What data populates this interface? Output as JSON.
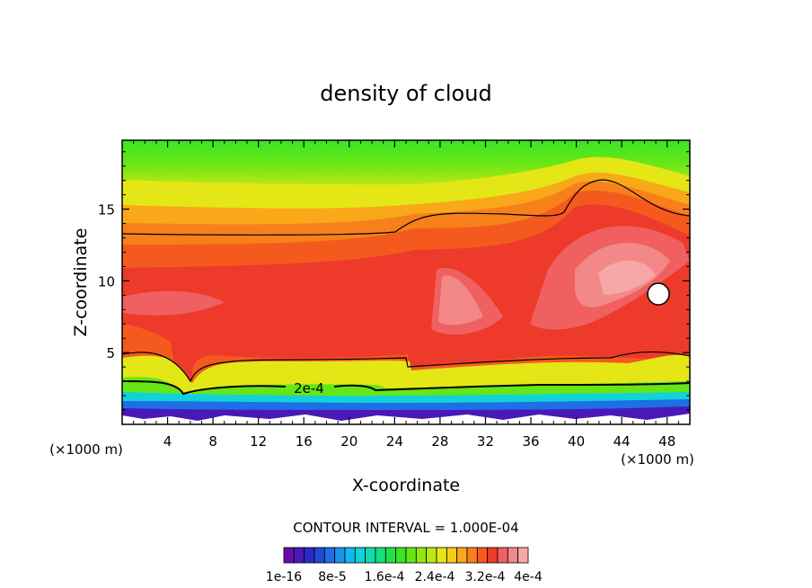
{
  "chart_data": {
    "type": "heatmap",
    "title": "density of cloud",
    "xlabel": "X-coordinate",
    "ylabel": "Z-coordinate",
    "x_unit_left": "(×1000 m)",
    "x_unit_right": "(×1000 m)",
    "xlim": [
      0,
      50
    ],
    "ylim": [
      0,
      19.8
    ],
    "x_ticks": [
      4,
      8,
      12,
      16,
      20,
      24,
      28,
      32,
      36,
      40,
      44,
      48
    ],
    "x_tick_labels": [
      "4",
      "8",
      "12",
      "16",
      "20",
      "24",
      "28",
      "32",
      "36",
      "40",
      "44",
      "48"
    ],
    "y_ticks": [
      5,
      10,
      15
    ],
    "y_tick_labels": [
      "5",
      "10",
      "15"
    ],
    "contour_interval_text": "CONTOUR INTERVAL = 1.000E-04",
    "contour_label": "2e-4",
    "colorbar": {
      "colors": [
        "#6a0da8",
        "#4b18b8",
        "#2a2ac8",
        "#1f4ad8",
        "#1e6ee6",
        "#1a92ee",
        "#12b8f0",
        "#10d2d8",
        "#10dcb0",
        "#14e07c",
        "#1ee44a",
        "#3ae626",
        "#66e616",
        "#92e812",
        "#bce814",
        "#e4e616",
        "#f4cc18",
        "#f8a818",
        "#f8801a",
        "#f45a1e",
        "#ee3a2a",
        "#f06060",
        "#f28888",
        "#f6a8a8"
      ],
      "tick_labels": [
        "1e-16",
        "8e-5",
        "1.6e-4",
        "2.4e-4",
        "3.2e-4",
        "4e-4"
      ]
    },
    "regions_desc": "max_density_units_1e-4"
  },
  "colors": {
    "background": "#ffffff",
    "frame": "#000000"
  }
}
